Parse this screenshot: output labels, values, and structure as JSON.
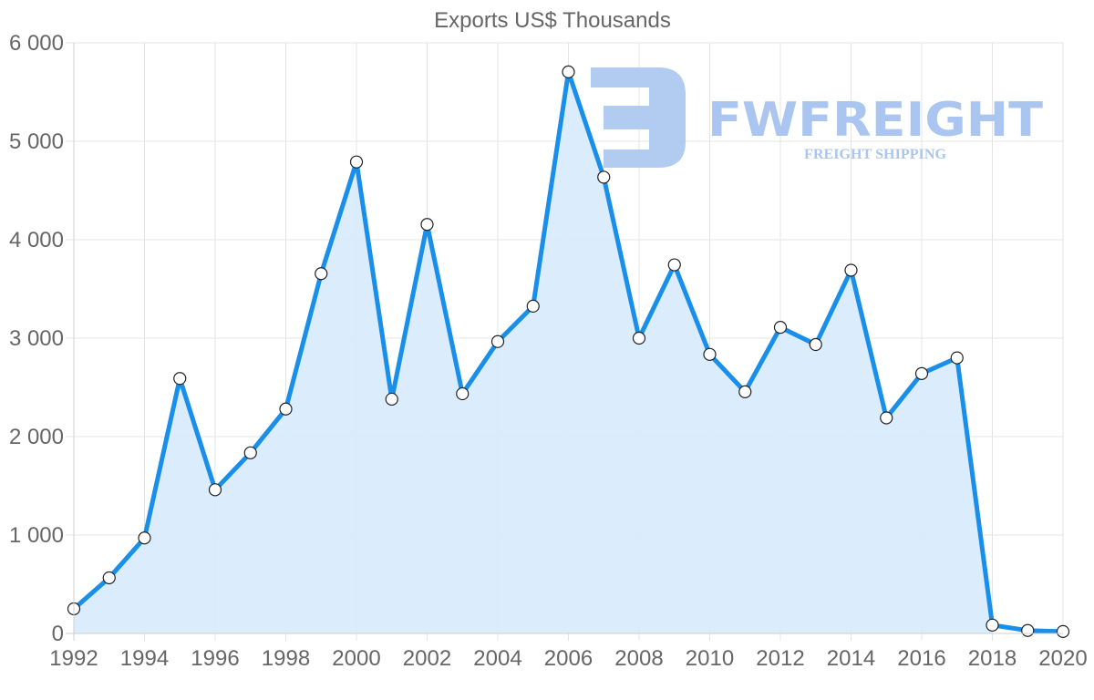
{
  "chart_data": {
    "type": "line",
    "title": "Exports US$ Thousands",
    "xlabel": "",
    "ylabel": "",
    "x": [
      1992,
      1993,
      1994,
      1995,
      1996,
      1997,
      1998,
      1999,
      2000,
      2001,
      2002,
      2003,
      2004,
      2005,
      2006,
      2007,
      2008,
      2009,
      2010,
      2011,
      2012,
      2013,
      2014,
      2015,
      2016,
      2017,
      2018,
      2019,
      2020
    ],
    "series": [
      {
        "name": "Exports US$ Thousands",
        "values": [
          250,
          565,
          970,
          2590,
          1460,
          1835,
          2280,
          3655,
          4790,
          2380,
          4155,
          2435,
          2965,
          3325,
          5705,
          4635,
          3000,
          3745,
          2835,
          2455,
          3110,
          2935,
          3690,
          2190,
          2640,
          2800,
          85,
          30,
          20
        ]
      }
    ],
    "x_tick_labels": [
      "1992",
      "1994",
      "1996",
      "1998",
      "2000",
      "2002",
      "2004",
      "2006",
      "2008",
      "2010",
      "2012",
      "2014",
      "2016",
      "2018",
      "2020"
    ],
    "y_tick_labels": [
      "0",
      "1 000",
      "2 000",
      "3 000",
      "4 000",
      "5 000",
      "6 000"
    ],
    "y_ticks": [
      0,
      1000,
      2000,
      3000,
      4000,
      5000,
      6000
    ],
    "ylim": [
      0,
      6000
    ],
    "xlim": [
      1992,
      2020
    ],
    "grid": true,
    "legend": "none",
    "area_fill": true,
    "colors": {
      "line": "#1a8fea",
      "fill": "#d9ecfc",
      "grid": "#e4e4e4",
      "axis": "#cfcfcf",
      "text": "#666666",
      "marker_fill": "#ffffff",
      "marker_stroke": "#222222"
    }
  },
  "watermark": {
    "brand": "FWFREIGHT",
    "tagline": "FREIGHT SHIPPING",
    "color": "#a9c5f0"
  }
}
